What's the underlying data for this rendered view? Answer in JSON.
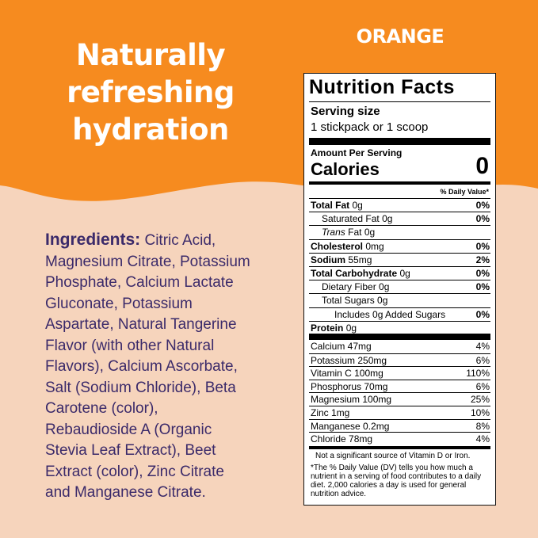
{
  "header": {
    "headline": [
      "Naturally",
      "refreshing",
      "hydration"
    ],
    "flavor": "ORANGE"
  },
  "ingredients": {
    "label": "Ingredients:",
    "lines": [
      " Citric Acid,",
      "Magnesium Citrate, Potassium",
      "Phosphate, Calcium Lactate",
      "Gluconate, Potassium",
      "Aspartate, Natural Tangerine",
      "Flavor (with other Natural",
      "Flavors), Calcium Ascorbate,",
      "Salt (Sodium Chloride), Beta",
      "Carotene (color),",
      "Rebaudioside A (Organic",
      "Stevia Leaf Extract), Beet",
      "Extract (color), Zinc Citrate",
      "and Manganese Citrate."
    ]
  },
  "nutrition": {
    "title": "Nutrition Facts",
    "serving_label": "Serving size",
    "serving": "1 stickpack or 1 scoop",
    "amount_per": "Amount Per Serving",
    "calories_label": "Calories",
    "calories": "0",
    "dv_header": "% Daily Value*",
    "nutrients": [
      {
        "name": "Total Fat",
        "amount": "0g",
        "dv": "0%"
      },
      {
        "name": "Saturated Fat",
        "amount": "0g",
        "dv": "0%"
      },
      {
        "italic": "Trans",
        "name": "Fat",
        "amount": "0g"
      },
      {
        "name": "Cholesterol",
        "amount": "0mg",
        "dv": "0%"
      },
      {
        "name": "Sodium",
        "amount": "55mg",
        "dv": "2%"
      },
      {
        "name": "Total Carbohydrate",
        "amount": "0g",
        "dv": "0%"
      },
      {
        "name": "Dietary Fiber",
        "amount": "0g",
        "dv": "0%"
      },
      {
        "name": "Total Sugars",
        "amount": "0g"
      },
      {
        "name": "Includes 0g Added Sugars",
        "dv": "0%"
      },
      {
        "name": "Protein",
        "amount": "0g"
      }
    ],
    "vitamins": [
      {
        "name": "Calcium 47mg",
        "dv": "4%"
      },
      {
        "name": "Potassium 250mg",
        "dv": "6%"
      },
      {
        "name": "Vitamin C 100mg",
        "dv": "110%"
      },
      {
        "name": "Phosphorus 70mg",
        "dv": "6%"
      },
      {
        "name": "Magnesium 100mg",
        "dv": "25%"
      },
      {
        "name": "Zinc 1mg",
        "dv": "10%"
      },
      {
        "name": "Manganese 0.2mg",
        "dv": "8%"
      },
      {
        "name": "Chloride 78mg",
        "dv": "4%"
      }
    ],
    "footnotes": [
      "Not a significant source of Vitamin D or Iron.",
      "*The % Daily Value (DV) tells you how much a nutrient in a serving of food contributes to a daily diet. 2,000 calories a day is used for general nutrition advice."
    ]
  }
}
